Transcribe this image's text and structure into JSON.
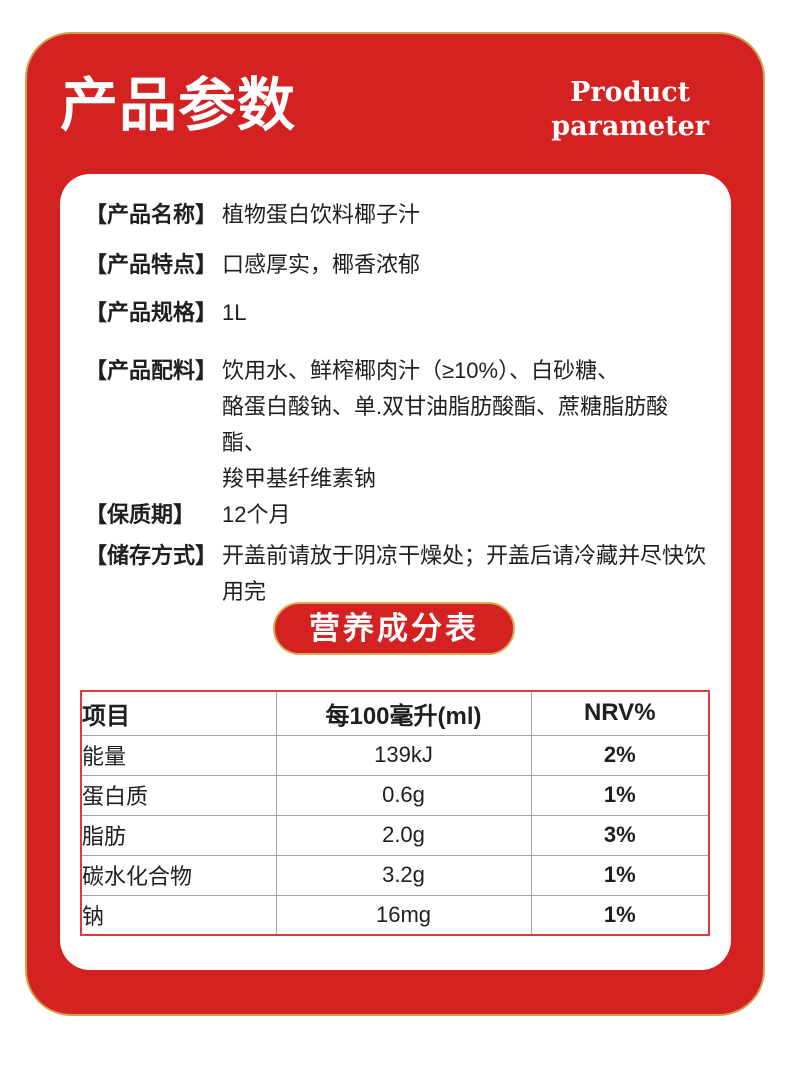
{
  "header": {
    "title_cn": "产品参数",
    "title_en": "Product\nparameter"
  },
  "specs": [
    {
      "label": "【产品名称】",
      "value": "植物蛋白饮料椰子汁"
    },
    {
      "label": "【产品特点】",
      "value": "口感厚实，椰香浓郁"
    },
    {
      "label": "【产品规格】",
      "value": "1L"
    },
    {
      "label": "【产品配料】",
      "value": "饮用水、鲜榨椰肉汁（≥10%）、白砂糖、\n酪蛋白酸钠、单.双甘油脂肪酸酯、蔗糖脂肪酸酯、\n羧甲基纤维素钠"
    },
    {
      "label": "【保质期】",
      "value": "12个月"
    },
    {
      "label": "【储存方式】",
      "value": "开盖前请放于阴凉干燥处；开盖后请冷藏并尽快饮\n用完"
    }
  ],
  "nutrition": {
    "badge_label": "营养成分表",
    "table": {
      "headers": [
        "项目",
        "每100毫升(ml)",
        "NRV%"
      ],
      "rows": [
        {
          "item": "能量",
          "per100ml": "139kJ",
          "nrv": "2%"
        },
        {
          "item": "蛋白质",
          "per100ml": "0.6g",
          "nrv": "1%"
        },
        {
          "item": "脂肪",
          "per100ml": "2.0g",
          "nrv": "3%"
        },
        {
          "item": "碳水化合物",
          "per100ml": "3.2g",
          "nrv": "1%"
        },
        {
          "item": "钠",
          "per100ml": "16mg",
          "nrv": "1%"
        }
      ]
    }
  },
  "colors": {
    "brand_red": "#d42121",
    "gold_border": "#d2a14f",
    "pill_gold_border": "#d9ab55",
    "table_border_red": "#dd3c3c",
    "table_inner_gray": "#a6a6a6",
    "text": "#1f1f1f"
  }
}
